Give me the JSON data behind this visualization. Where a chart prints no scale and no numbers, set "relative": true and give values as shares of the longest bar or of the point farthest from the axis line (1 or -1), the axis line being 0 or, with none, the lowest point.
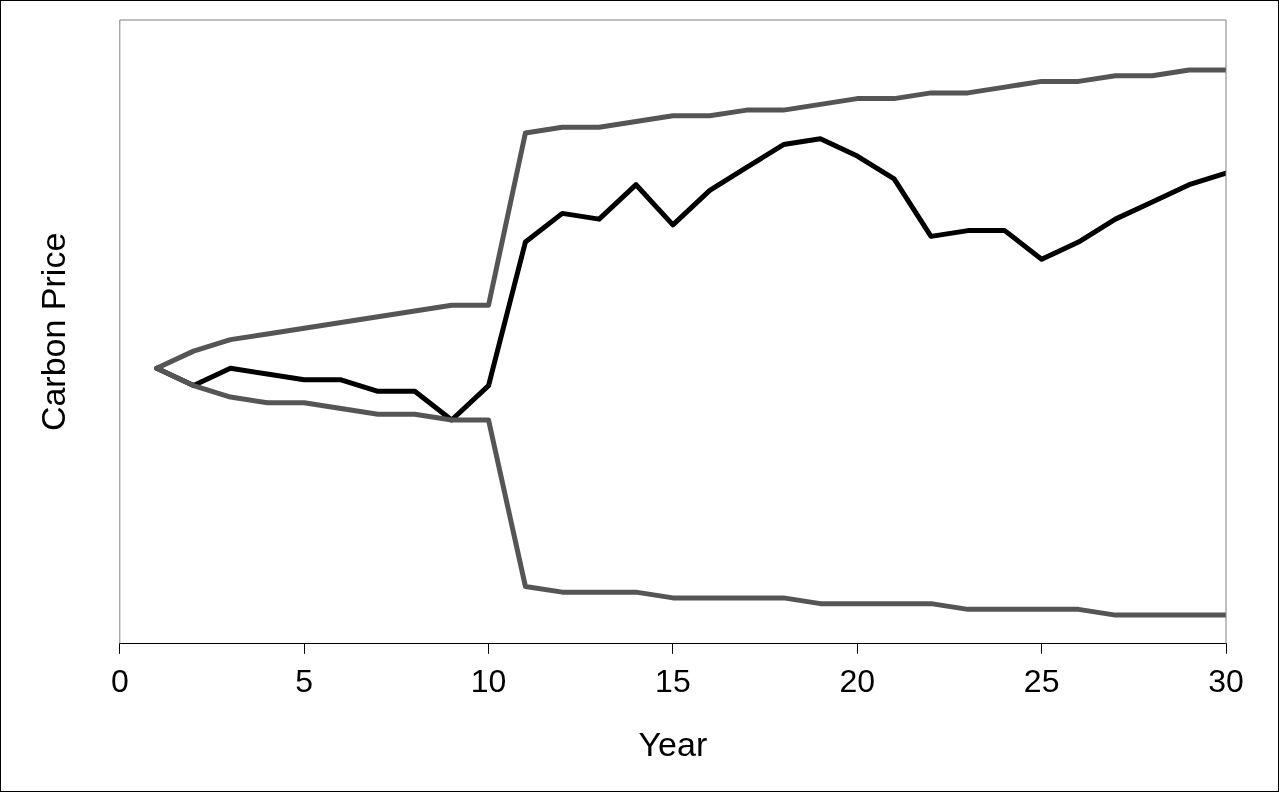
{
  "chart_data": {
    "type": "line",
    "xlabel": "Year",
    "ylabel": "Carbon Price",
    "relative": true,
    "xlim": [
      0,
      30
    ],
    "xticks": [
      0,
      5,
      10,
      15,
      20,
      25,
      30
    ],
    "grid": false,
    "legend": false,
    "marker": "none",
    "line_style": "solid",
    "x": [
      1,
      2,
      3,
      4,
      5,
      6,
      7,
      8,
      9,
      10,
      11,
      12,
      13,
      14,
      15,
      16,
      17,
      18,
      19,
      20,
      21,
      22,
      23,
      24,
      25,
      26,
      27,
      28,
      29,
      30
    ],
    "series": [
      {
        "color": "#555555",
        "values": [
          0.48,
          0.51,
          0.53,
          0.54,
          0.55,
          0.56,
          0.57,
          0.58,
          0.59,
          0.59,
          0.89,
          0.9,
          0.9,
          0.91,
          0.92,
          0.92,
          0.93,
          0.93,
          0.94,
          0.95,
          0.95,
          0.96,
          0.96,
          0.97,
          0.98,
          0.98,
          0.99,
          0.99,
          1.0,
          1.0
        ]
      },
      {
        "color": "#555555",
        "values": [
          0.48,
          0.45,
          0.43,
          0.42,
          0.42,
          0.41,
          0.4,
          0.4,
          0.39,
          0.39,
          0.1,
          0.09,
          0.09,
          0.09,
          0.08,
          0.08,
          0.08,
          0.08,
          0.07,
          0.07,
          0.07,
          0.07,
          0.06,
          0.06,
          0.06,
          0.06,
          0.05,
          0.05,
          0.05,
          0.05
        ]
      },
      {
        "color": "#000000",
        "values": [
          0.48,
          0.45,
          0.48,
          0.47,
          0.46,
          0.46,
          0.44,
          0.44,
          0.39,
          0.45,
          0.7,
          0.75,
          0.74,
          0.8,
          0.73,
          0.79,
          0.83,
          0.87,
          0.88,
          0.85,
          0.81,
          0.71,
          0.72,
          0.72,
          0.67,
          0.7,
          0.74,
          0.77,
          0.8,
          0.82
        ]
      }
    ]
  }
}
